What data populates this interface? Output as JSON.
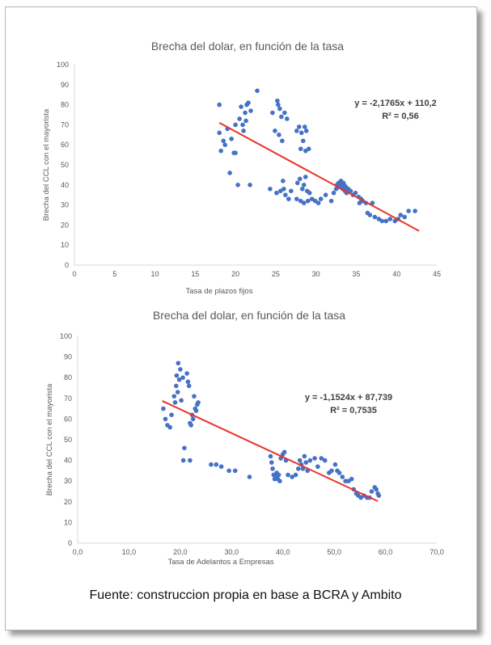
{
  "source_note": "Fuente: construccion propia en base a BCRA y Ambito",
  "colors": {
    "points": "#4472c4",
    "trend": "#e8352c",
    "axis": "#d9d9d9",
    "text": "#595959"
  },
  "chart_data": [
    {
      "type": "scatter",
      "title": "Brecha del dolar, en función de la tasa",
      "xlabel": "Tasa de plazos fijos",
      "ylabel": "Brecha del CCL con el mayorista",
      "xlim": [
        0,
        45
      ],
      "ylim": [
        0,
        100
      ],
      "xticks": [
        "0",
        "5",
        "10",
        "15",
        "20",
        "25",
        "30",
        "35",
        "40",
        "45"
      ],
      "yticks": [
        "0",
        "10",
        "20",
        "30",
        "40",
        "50",
        "60",
        "70",
        "80",
        "90",
        "100"
      ],
      "trendline": {
        "slope": -2.1765,
        "intercept": 110.2,
        "x_range": [
          18,
          42.8
        ]
      },
      "annotation": {
        "equation": "y = -2,1765x + 110,2",
        "r2": "R² = 0,56"
      },
      "grid": false,
      "points": [
        [
          18,
          80
        ],
        [
          18,
          66
        ],
        [
          18.2,
          57
        ],
        [
          18.5,
          62
        ],
        [
          18.7,
          60
        ],
        [
          19,
          68
        ],
        [
          19.5,
          63
        ],
        [
          19.8,
          56
        ],
        [
          20,
          56
        ],
        [
          19.3,
          46
        ],
        [
          20.3,
          40
        ],
        [
          21.8,
          40
        ],
        [
          20,
          70
        ],
        [
          20.5,
          73
        ],
        [
          20.7,
          79
        ],
        [
          20.9,
          70
        ],
        [
          21,
          67
        ],
        [
          21.2,
          76
        ],
        [
          21.4,
          80
        ],
        [
          21.6,
          81
        ],
        [
          21.9,
          77
        ],
        [
          21.3,
          72
        ],
        [
          22.7,
          87
        ],
        [
          24.6,
          76
        ],
        [
          24.9,
          67
        ],
        [
          25.2,
          82
        ],
        [
          25.3,
          80
        ],
        [
          25.5,
          78
        ],
        [
          25.7,
          74
        ],
        [
          25.4,
          65
        ],
        [
          26.1,
          76
        ],
        [
          26.4,
          73
        ],
        [
          25.8,
          62
        ],
        [
          27.6,
          67
        ],
        [
          27.9,
          69
        ],
        [
          28.2,
          66
        ],
        [
          28.4,
          62
        ],
        [
          28.6,
          69
        ],
        [
          28.8,
          67
        ],
        [
          28.1,
          58
        ],
        [
          28.7,
          57
        ],
        [
          29.1,
          58
        ],
        [
          27.7,
          41
        ],
        [
          28.0,
          43
        ],
        [
          28.3,
          38
        ],
        [
          28.5,
          40
        ],
        [
          28.7,
          44
        ],
        [
          28.9,
          37
        ],
        [
          29.2,
          36
        ],
        [
          24.3,
          38
        ],
        [
          25.1,
          36
        ],
        [
          25.6,
          37
        ],
        [
          26,
          38
        ],
        [
          26.2,
          35
        ],
        [
          26.6,
          33
        ],
        [
          26.9,
          37
        ],
        [
          25.9,
          42
        ],
        [
          27.6,
          33
        ],
        [
          28.1,
          32
        ],
        [
          28.5,
          31
        ],
        [
          29,
          32
        ],
        [
          29.5,
          33
        ],
        [
          29.9,
          32
        ],
        [
          30.3,
          31
        ],
        [
          30.6,
          33
        ],
        [
          31.2,
          35
        ],
        [
          31.9,
          32
        ],
        [
          32.2,
          36
        ],
        [
          32.5,
          38
        ],
        [
          32.6,
          40
        ],
        [
          32.8,
          41
        ],
        [
          32.9,
          39
        ],
        [
          33,
          40
        ],
        [
          33.1,
          42
        ],
        [
          33.2,
          39
        ],
        [
          33.3,
          38
        ],
        [
          33.4,
          41
        ],
        [
          33.5,
          40
        ],
        [
          33.6,
          37
        ],
        [
          33.7,
          39
        ],
        [
          33.8,
          36
        ],
        [
          34,
          38
        ],
        [
          34.3,
          37
        ],
        [
          34.6,
          35
        ],
        [
          34.9,
          36
        ],
        [
          35.3,
          34
        ],
        [
          35.6,
          33
        ],
        [
          35.4,
          31
        ],
        [
          35.8,
          32
        ],
        [
          36.2,
          31
        ],
        [
          36.4,
          26
        ],
        [
          36.7,
          25
        ],
        [
          37,
          31
        ],
        [
          37.3,
          24
        ],
        [
          37.8,
          23
        ],
        [
          38.2,
          22
        ],
        [
          38.7,
          22
        ],
        [
          39.2,
          23
        ],
        [
          39.8,
          22
        ],
        [
          40.2,
          23
        ],
        [
          40.5,
          25
        ],
        [
          41,
          24
        ],
        [
          41.5,
          27
        ],
        [
          42.3,
          27
        ]
      ]
    },
    {
      "type": "scatter",
      "title": "Brecha del dolar, en función de la tasa",
      "xlabel": "Tasa de Adelantos a Empresas",
      "ylabel": "Brecha del CCL con el mayorista",
      "xlim": [
        0,
        70
      ],
      "ylim": [
        0,
        100
      ],
      "xticks": [
        "0,0",
        "10,0",
        "20,0",
        "30,0",
        "40,0",
        "50,0",
        "60,0",
        "70,0"
      ],
      "yticks": [
        "0",
        "10",
        "20",
        "30",
        "40",
        "50",
        "60",
        "70",
        "80",
        "90",
        "100"
      ],
      "trendline": {
        "slope": -1.1524,
        "intercept": 87.739,
        "x_range": [
          16.5,
          58.5
        ]
      },
      "annotation": {
        "equation": "y = -1,1524x + 87,739",
        "r2": "R² = 0,7535"
      },
      "grid": false,
      "points": [
        [
          16.7,
          65
        ],
        [
          17.1,
          60
        ],
        [
          17.5,
          57
        ],
        [
          18,
          56
        ],
        [
          18.3,
          62
        ],
        [
          18.8,
          71
        ],
        [
          19,
          68
        ],
        [
          19.2,
          76
        ],
        [
          19.3,
          81
        ],
        [
          19.5,
          73
        ],
        [
          19.6,
          87
        ],
        [
          19.8,
          79
        ],
        [
          20,
          84
        ],
        [
          20.2,
          69
        ],
        [
          20.5,
          80
        ],
        [
          20.8,
          46
        ],
        [
          20.6,
          40
        ],
        [
          21.3,
          82
        ],
        [
          21.5,
          78
        ],
        [
          21.7,
          76
        ],
        [
          21.9,
          58
        ],
        [
          22.1,
          57
        ],
        [
          22.3,
          62
        ],
        [
          22.5,
          60
        ],
        [
          22.7,
          71
        ],
        [
          22.9,
          65
        ],
        [
          23.1,
          64
        ],
        [
          23.3,
          67
        ],
        [
          23.5,
          68
        ],
        [
          21.9,
          40
        ],
        [
          26,
          38
        ],
        [
          27,
          38
        ],
        [
          28,
          37
        ],
        [
          29.5,
          35
        ],
        [
          30.7,
          35
        ],
        [
          33.5,
          32
        ],
        [
          37.6,
          42
        ],
        [
          37.8,
          39
        ],
        [
          38.0,
          36
        ],
        [
          38.2,
          33
        ],
        [
          38.4,
          31
        ],
        [
          38.6,
          32
        ],
        [
          38.8,
          34
        ],
        [
          39,
          31
        ],
        [
          39.2,
          33
        ],
        [
          39.4,
          30
        ],
        [
          39.6,
          41
        ],
        [
          40,
          43
        ],
        [
          40.3,
          44
        ],
        [
          40.6,
          40
        ],
        [
          41,
          33
        ],
        [
          41.8,
          32
        ],
        [
          42.5,
          33
        ],
        [
          43,
          36
        ],
        [
          43.3,
          40
        ],
        [
          43.6,
          38
        ],
        [
          43.9,
          36
        ],
        [
          44.2,
          42
        ],
        [
          44.5,
          39
        ],
        [
          44.8,
          35
        ],
        [
          45.3,
          40
        ],
        [
          46.2,
          41
        ],
        [
          46.8,
          37
        ],
        [
          47.5,
          41
        ],
        [
          48.2,
          40
        ],
        [
          49,
          34
        ],
        [
          49.5,
          35
        ],
        [
          50.2,
          38
        ],
        [
          50.6,
          35
        ],
        [
          51,
          34
        ],
        [
          51.6,
          32
        ],
        [
          52.2,
          30
        ],
        [
          52.8,
          30
        ],
        [
          53.4,
          31
        ],
        [
          53.8,
          26
        ],
        [
          54.3,
          24
        ],
        [
          54.7,
          23
        ],
        [
          55.2,
          22
        ],
        [
          55.8,
          23
        ],
        [
          56.4,
          22
        ],
        [
          56.9,
          22
        ],
        [
          57.3,
          25
        ],
        [
          57.9,
          27
        ],
        [
          58.2,
          26
        ],
        [
          58.5,
          24
        ],
        [
          58.7,
          23
        ]
      ]
    }
  ]
}
